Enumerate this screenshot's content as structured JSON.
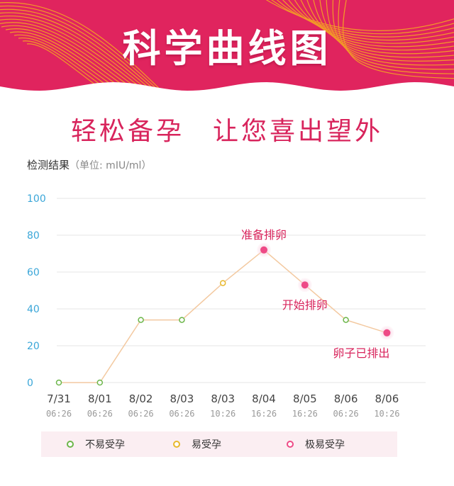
{
  "header": {
    "title": "科学曲线图",
    "subtitle": "轻松备孕　让您喜出望外",
    "banner_color": "#e0245e"
  },
  "chart_data": {
    "type": "line",
    "title": "检测结果",
    "ylabel_unit": "（单位: mIU/ml）",
    "ylim": [
      0,
      100
    ],
    "yticks": [
      "100",
      "80",
      "60",
      "40",
      "20",
      "0"
    ],
    "ytick_values": [
      100,
      80,
      60,
      40,
      20,
      0
    ],
    "grid": true,
    "categories": [
      {
        "date": "7/31",
        "time": "06:26"
      },
      {
        "date": "8/01",
        "time": "06:26"
      },
      {
        "date": "8/02",
        "time": "06:26"
      },
      {
        "date": "8/03",
        "time": "06:26"
      },
      {
        "date": "8/03",
        "time": "10:26"
      },
      {
        "date": "8/04",
        "time": "16:26"
      },
      {
        "date": "8/05",
        "time": "16:26"
      },
      {
        "date": "8/06",
        "time": "06:26"
      },
      {
        "date": "8/06",
        "time": "10:26"
      }
    ],
    "values": [
      0,
      0,
      34,
      34,
      54,
      72,
      53,
      34,
      27
    ],
    "point_category": [
      "low",
      "low",
      "low",
      "low",
      "medium",
      "high",
      "high",
      "low",
      "high"
    ],
    "annotations": [
      {
        "index": 5,
        "text": "准备排卵",
        "position": "above"
      },
      {
        "index": 6,
        "text": "开始排卵",
        "position": "below"
      },
      {
        "index": 8,
        "text": "卵子已排出",
        "position": "below"
      }
    ],
    "legend": [
      {
        "key": "low",
        "label": "不易受孕",
        "color": "#6cb64a"
      },
      {
        "key": "medium",
        "label": "易受孕",
        "color": "#e8b82c"
      },
      {
        "key": "high",
        "label": "极易受孕",
        "color": "#ee4a86"
      }
    ],
    "legend_position": "bottom",
    "line_color": "#f3c9a0",
    "tick_color": "#3aa6d8",
    "annotation_color": "#d8245c"
  }
}
